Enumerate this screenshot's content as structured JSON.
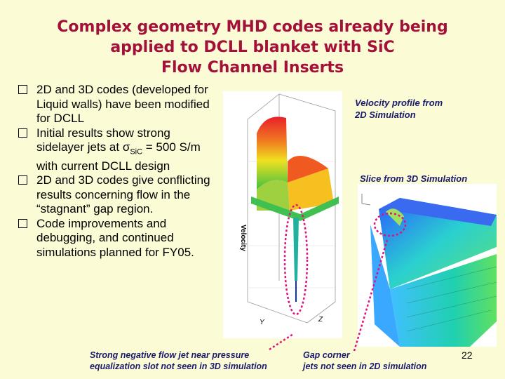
{
  "title": {
    "line1": "Complex geometry MHD codes already being",
    "line2": "applied to DCLL blanket with SiC",
    "line3": "Flow Channel Inserts"
  },
  "bullets": [
    {
      "pre": "2D and 3D codes (developed for Liquid walls) have been modified for DCLL"
    },
    {
      "pre": "Initial results show strong sidelayer jets at σ",
      "sub": "SiC",
      "post": " = 500 S/m with current DCLL design"
    },
    {
      "pre": "2D and 3D codes give conflicting  results concerning flow in the “stagnant” gap region."
    },
    {
      "pre": "Code improvements and debugging, and continued simulations planned for FY05."
    }
  ],
  "captions": {
    "velocity_line1": "Velocity profile from",
    "velocity_line2": "2D Simulation",
    "slice": "Slice from 3D Simulation"
  },
  "figure_labels": {
    "velocity_axis": "Velocity",
    "axis_y": "Y",
    "axis_z": "Z"
  },
  "notes": {
    "left_line1": "Strong negative flow jet near pressure",
    "left_line2": "equalization slot not seen in 3D simulation",
    "right_line1": "Gap corner",
    "right_line2": "jets not seen in 2D simulation"
  },
  "page_number": "22",
  "colors": {
    "title": "#a3103a",
    "background": "#fbfbd5",
    "caption": "#1a1a6e",
    "marker": "#e0117f"
  }
}
